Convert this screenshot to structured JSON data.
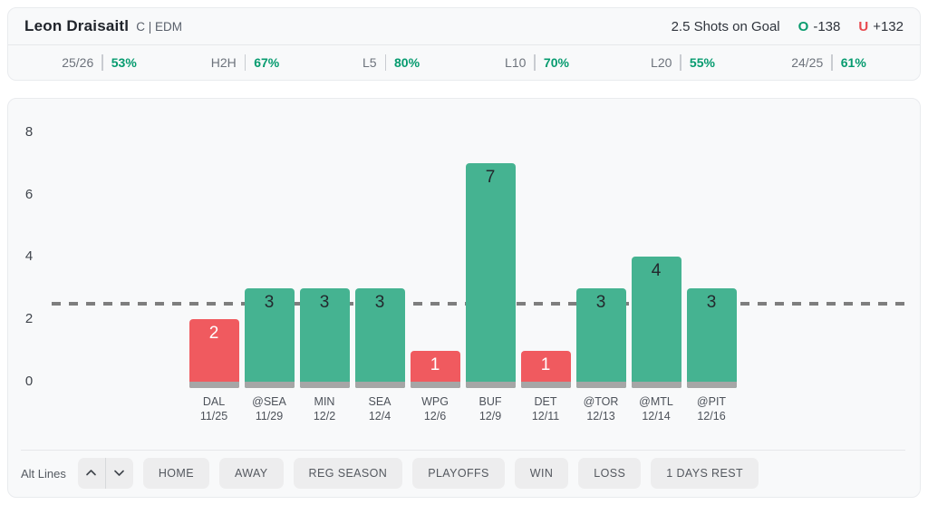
{
  "header": {
    "player": "Leon Draisaitl",
    "position_team": "C | EDM",
    "market": "2.5 Shots on Goal",
    "over_label": "O",
    "over_odds": "-138",
    "under_label": "U",
    "under_odds": "+132"
  },
  "stats": [
    {
      "label": "25/26",
      "value": "53%"
    },
    {
      "label": "H2H",
      "value": "67%"
    },
    {
      "label": "L5",
      "value": "80%"
    },
    {
      "label": "L10",
      "value": "70%"
    },
    {
      "label": "L20",
      "value": "55%"
    },
    {
      "label": "24/25",
      "value": "61%"
    }
  ],
  "chart_data": {
    "type": "bar",
    "categories": [
      "DAL",
      "@SEA",
      "MIN",
      "SEA",
      "WPG",
      "BUF",
      "DET",
      "@TOR",
      "@MTL",
      "@PIT"
    ],
    "dates": [
      "11/25",
      "11/29",
      "12/2",
      "12/4",
      "12/6",
      "12/9",
      "12/11",
      "12/13",
      "12/14",
      "12/16"
    ],
    "values": [
      2,
      3,
      3,
      3,
      1,
      7,
      1,
      3,
      4,
      3
    ],
    "line_value": 2.5,
    "ylim": [
      0,
      8
    ],
    "yticks": [
      0,
      2,
      4,
      6,
      8
    ],
    "grid": "off",
    "colors": {
      "over": "#45b391",
      "under": "#f05a5f",
      "base": "#a6a6a6",
      "line": "#7e7e7e",
      "label_on_over": "#23282d",
      "label_on_under": "#ffffff"
    }
  },
  "filters": {
    "alt_lines_label": "Alt Lines",
    "buttons": [
      "HOME",
      "AWAY",
      "REG SEASON",
      "PLAYOFFS",
      "WIN",
      "LOSS",
      "1 DAYS REST"
    ]
  }
}
